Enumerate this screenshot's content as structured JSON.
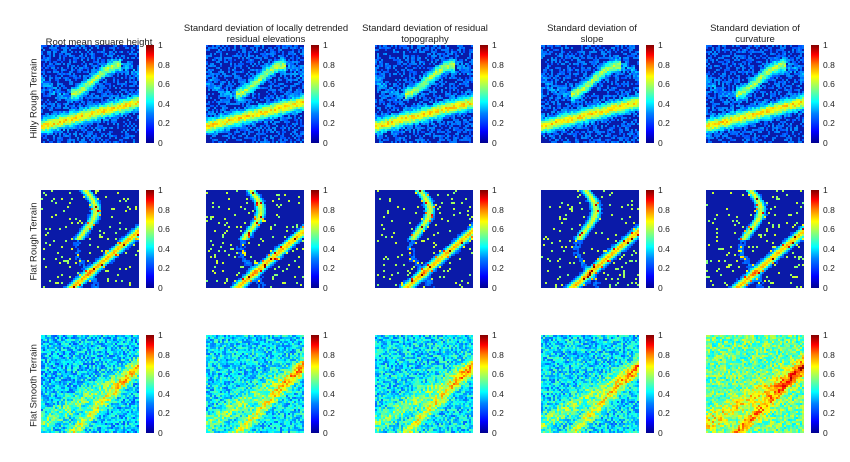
{
  "figure": {
    "column_titles": [
      "Root mean square height",
      "Standard deviation of locally detrended residual elevations",
      "Standard deviation of residual topography",
      "Standard deviation of slope",
      "Standard deviation of curvature"
    ],
    "row_labels": [
      "Hilly Rough Terrain",
      "Flat Rough Terrain",
      "Flat Smooth Terrain"
    ],
    "colorbar": {
      "colormap": "jet",
      "ticks": [
        "1",
        "0.8",
        "0.6",
        "0.4",
        "0.2",
        "0"
      ],
      "range": [
        0,
        1
      ]
    },
    "colors": {
      "low": "#00008f",
      "mid": "#00ffff",
      "high": "#800000"
    }
  }
}
